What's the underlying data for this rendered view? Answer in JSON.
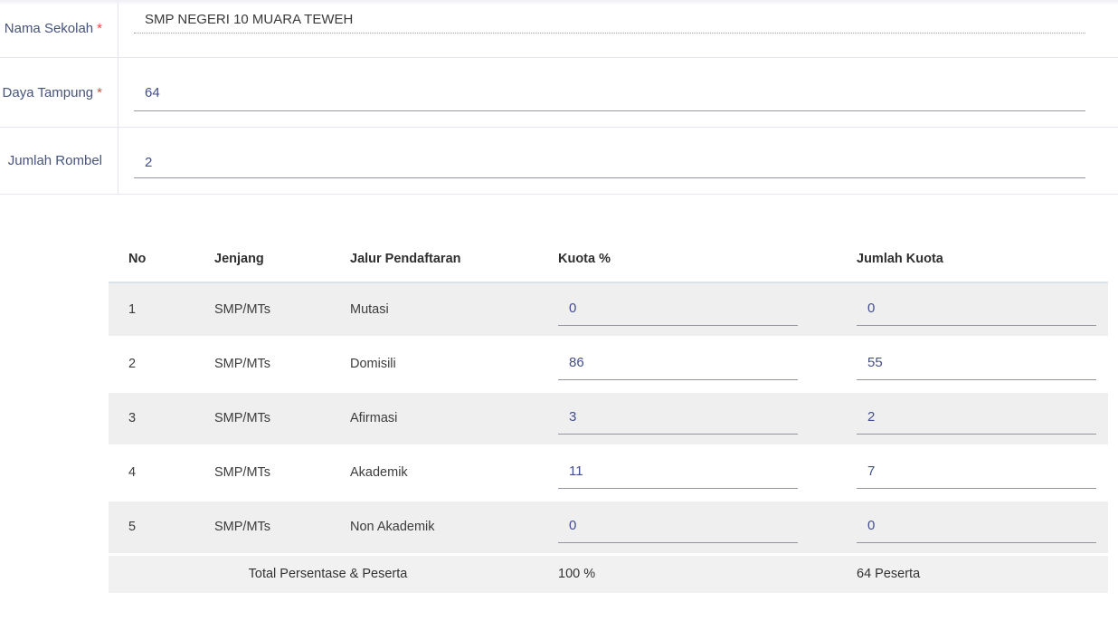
{
  "form": {
    "required_marker": "*",
    "fields": [
      {
        "label": "Nama Sekolah",
        "required": true,
        "value": "SMP NEGERI 10 MUARA TEWEH",
        "disabled": true
      },
      {
        "label": "Daya Tampung",
        "required": true,
        "value": "64",
        "disabled": false
      },
      {
        "label": "Jumlah Rombel",
        "required": false,
        "value": "2",
        "disabled": false
      }
    ]
  },
  "quota_table": {
    "columns": [
      "No",
      "Jenjang",
      "Jalur Pendaftaran",
      "Kuota %",
      "Jumlah Kuota"
    ],
    "rows": [
      {
        "no": "1",
        "jenjang": "SMP/MTs",
        "jalur": "Mutasi",
        "kuota_persen": "0",
        "jumlah_kuota": "0"
      },
      {
        "no": "2",
        "jenjang": "SMP/MTs",
        "jalur": "Domisili",
        "kuota_persen": "86",
        "jumlah_kuota": "55"
      },
      {
        "no": "3",
        "jenjang": "SMP/MTs",
        "jalur": "Afirmasi",
        "kuota_persen": "3",
        "jumlah_kuota": "2"
      },
      {
        "no": "4",
        "jenjang": "SMP/MTs",
        "jalur": "Akademik",
        "kuota_persen": "11",
        "jumlah_kuota": "7"
      },
      {
        "no": "5",
        "jenjang": "SMP/MTs",
        "jalur": "Non Akademik",
        "kuota_persen": "0",
        "jumlah_kuota": "0"
      }
    ],
    "total": {
      "label": "Total Persentase & Peserta",
      "kuota_persen": "100 %",
      "jumlah_kuota": "64 Peserta"
    }
  },
  "colors": {
    "label_text": "#47547c",
    "required_asterisk": "#e8483f",
    "input_text": "#434e8c",
    "input_underline": "#97979f",
    "table_header_text": "#2f2f2f",
    "table_cell_text": "#3c3c3c",
    "row_stripe_bg": "#efefef",
    "total_row_bg": "#f1f1f2",
    "divider_line": "#e5e5ef"
  }
}
